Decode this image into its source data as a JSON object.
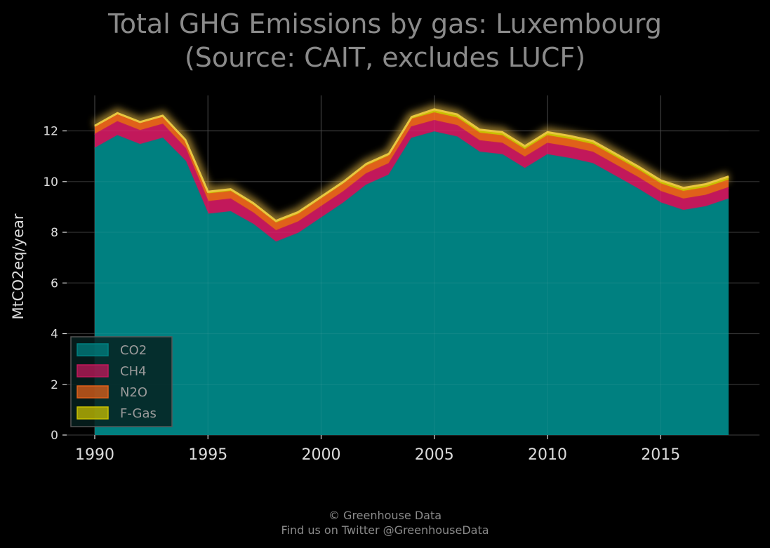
{
  "title_line1": "Total GHG Emissions by gas: Luxembourg",
  "title_line2": "(Source: CAIT, excludes LUCF)",
  "footer_line1": "© Greenhouse Data",
  "footer_line2": "Find us on Twitter @GreenhouseData",
  "colors": {
    "background": "#000000",
    "grid": "#333333",
    "CO2": "#008080",
    "CH4": "#c2185b",
    "N2O": "#e0601a",
    "F-Gas": "#c8c000",
    "glow": "#c9a23a"
  },
  "chart_data": {
    "type": "area",
    "stacked": true,
    "title": "Total GHG Emissions by gas: Luxembourg (Source: CAIT, excludes LUCF)",
    "xlabel": "",
    "ylabel": "MtCO2eq/year",
    "xlim": [
      1990,
      2018
    ],
    "ylim": [
      0,
      13.4
    ],
    "xticks": [
      1990,
      1995,
      2000,
      2005,
      2010,
      2015
    ],
    "yticks": [
      0,
      2,
      4,
      6,
      8,
      10,
      12
    ],
    "grid": true,
    "legend_position": "bottom-left",
    "x": [
      1990,
      1991,
      1992,
      1993,
      1994,
      1995,
      1996,
      1997,
      1998,
      1999,
      2000,
      2001,
      2002,
      2003,
      2004,
      2005,
      2006,
      2007,
      2008,
      2009,
      2010,
      2011,
      2012,
      2013,
      2014,
      2015,
      2016,
      2017,
      2018
    ],
    "series": [
      {
        "name": "CO2",
        "values": [
          11.3,
          11.8,
          11.45,
          11.7,
          10.8,
          8.7,
          8.8,
          8.3,
          7.6,
          7.95,
          8.55,
          9.15,
          9.85,
          10.25,
          11.7,
          11.95,
          11.75,
          11.15,
          11.05,
          10.5,
          11.05,
          10.9,
          10.7,
          10.2,
          9.7,
          9.15,
          8.85,
          9.0,
          9.3
        ]
      },
      {
        "name": "CH4",
        "values": [
          0.55,
          0.55,
          0.55,
          0.55,
          0.5,
          0.5,
          0.5,
          0.45,
          0.45,
          0.45,
          0.45,
          0.45,
          0.45,
          0.45,
          0.45,
          0.45,
          0.45,
          0.45,
          0.45,
          0.45,
          0.45,
          0.45,
          0.45,
          0.45,
          0.45,
          0.45,
          0.45,
          0.45,
          0.45
        ]
      },
      {
        "name": "N2O",
        "values": [
          0.3,
          0.3,
          0.3,
          0.3,
          0.3,
          0.3,
          0.3,
          0.3,
          0.3,
          0.3,
          0.3,
          0.3,
          0.3,
          0.3,
          0.3,
          0.3,
          0.3,
          0.3,
          0.3,
          0.3,
          0.3,
          0.3,
          0.3,
          0.3,
          0.3,
          0.3,
          0.3,
          0.3,
          0.3
        ]
      },
      {
        "name": "F-Gas",
        "values": [
          0.05,
          0.05,
          0.05,
          0.05,
          0.05,
          0.1,
          0.1,
          0.1,
          0.1,
          0.1,
          0.1,
          0.1,
          0.1,
          0.1,
          0.1,
          0.15,
          0.15,
          0.15,
          0.15,
          0.15,
          0.15,
          0.15,
          0.15,
          0.15,
          0.15,
          0.15,
          0.15,
          0.15,
          0.15
        ]
      }
    ]
  }
}
